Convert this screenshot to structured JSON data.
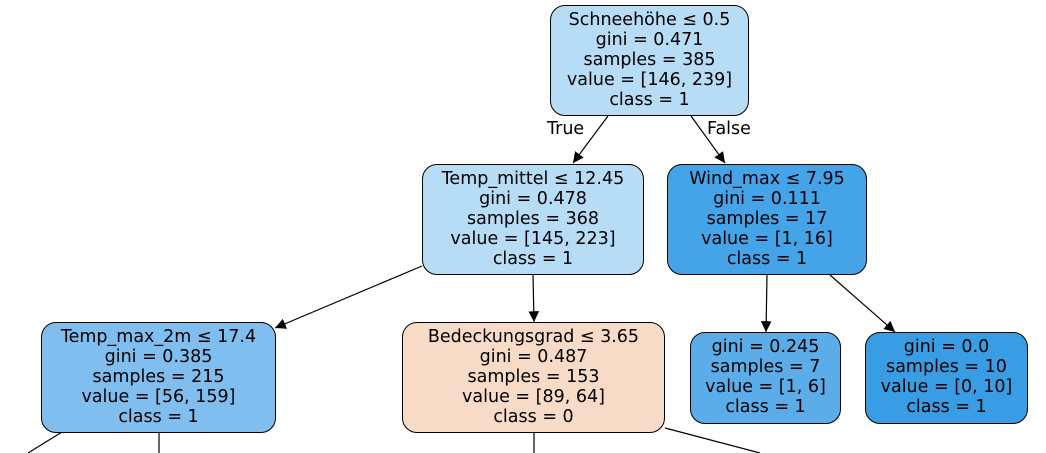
{
  "colors": {
    "class1_light": "#b7dcf6",
    "class1_medium": "#7fbeee",
    "class1_dark": "#45a3e8",
    "class1_leaf_mid": "#5aade9",
    "class1_leaf_dark": "#399de5",
    "class0_light": "#f8dbc6",
    "edge": "#000000"
  },
  "edge_labels": {
    "true": "True",
    "false": "False"
  },
  "nodes": {
    "root": {
      "color": "#b7dcf6",
      "lines": [
        "Schneehöhe ≤ 0.5",
        "gini = 0.471",
        "samples = 385",
        "value = [146, 239]",
        "class = 1"
      ]
    },
    "left": {
      "color": "#b7dcf6",
      "lines": [
        "Temp_mittel ≤ 12.45",
        "gini = 0.478",
        "samples = 368",
        "value = [145, 223]",
        "class = 1"
      ]
    },
    "right": {
      "color": "#45a3e8",
      "lines": [
        "Wind_max ≤ 7.95",
        "gini = 0.111",
        "samples = 17",
        "value = [1, 16]",
        "class = 1"
      ]
    },
    "left_left": {
      "color": "#7fbeee",
      "lines": [
        "Temp_max_2m ≤ 17.4",
        "gini = 0.385",
        "samples = 215",
        "value = [56, 159]",
        "class = 1"
      ]
    },
    "left_right": {
      "color": "#f8dbc6",
      "lines": [
        "Bedeckungsgrad ≤ 3.65",
        "gini = 0.487",
        "samples = 153",
        "value = [89, 64]",
        "class = 0"
      ]
    },
    "right_left": {
      "color": "#5aade9",
      "lines": [
        "gini = 0.245",
        "samples = 7",
        "value = [1, 6]",
        "class = 1"
      ]
    },
    "right_right": {
      "color": "#399de5",
      "lines": [
        "gini = 0.0",
        "samples = 10",
        "value = [0, 10]",
        "class = 1"
      ]
    }
  }
}
